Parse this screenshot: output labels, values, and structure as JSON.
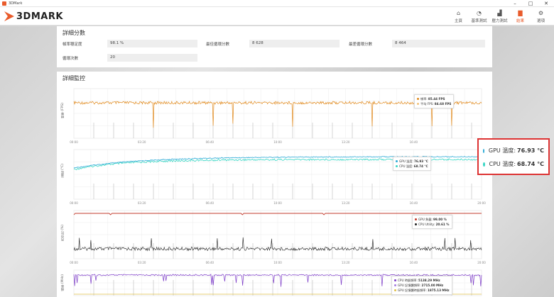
{
  "window": {
    "title": "3DMark",
    "controls": [
      "–",
      "□",
      "✕"
    ]
  },
  "app": {
    "logo_text": "3DMARK"
  },
  "nav": [
    {
      "icon": "home-icon",
      "glyph": "⌂",
      "label": "主頁",
      "active": false
    },
    {
      "icon": "benchmark-icon",
      "glyph": "◔",
      "label": "基準測試",
      "active": false
    },
    {
      "icon": "stress-test-icon",
      "glyph": "▟",
      "label": "壓力測試",
      "active": false
    },
    {
      "icon": "results-icon",
      "glyph": "▇",
      "label": "結果",
      "active": true
    },
    {
      "icon": "options-icon",
      "glyph": "⚙",
      "label": "選項",
      "active": false
    }
  ],
  "details": {
    "title": "詳細分數",
    "frame_stability_label": "幀率穩定度",
    "frame_stability_value": "98.1 %",
    "best_loop_label": "最佳循環分數",
    "best_loop_value": "8 628",
    "worst_loop_label": "最差循環分數",
    "worst_loop_value": "8 464",
    "loops_label": "循環次數",
    "loops_value": "20"
  },
  "monitoring": {
    "title": "詳細監控",
    "fps_axis": "幀率 (FPS)",
    "temp_axis": "溫度 (°C)",
    "util_axis": "百分比 (%)",
    "freq_axis": "頻率 (MHz)",
    "fps_tip": {
      "fps_label": "幀率",
      "fps_value": "85.44 FPS",
      "avg_label": "平均 FPS",
      "avg_value": "84.68 FPS"
    },
    "temp_tip": {
      "gpu_label": "GPU 溫度",
      "gpu_value": "76.93 °C",
      "cpu_label": "CPU 溫度",
      "cpu_value": "68.74 °C"
    },
    "util_tip": {
      "gpu_label": "GPU 負載",
      "gpu_value": "99.00 %",
      "cpu_label": "CPU Utility",
      "cpu_value": "20.61 %"
    },
    "freq_tip": {
      "a_label": "CPU 時脈頻率",
      "a_value": "5138.29 MHz",
      "b_label": "GPU 記憶體頻率",
      "b_value": "2715.00 MHz",
      "c_label": "GPU 記憶體時脈頻率",
      "c_value": "1875.13 MHz"
    },
    "time_ticks": [
      "00:00",
      "03:20",
      "06:40",
      "10:00",
      "13:20",
      "16:40",
      "20:00"
    ]
  },
  "callout": {
    "gpu_label": "GPU 溫度:",
    "gpu_value": "76.93 °C",
    "cpu_label": "CPU 溫度:",
    "cpu_value": "68.74 °C"
  },
  "colors": {
    "accent": "#e95b2b",
    "fps": "#e08a1e",
    "gpu_temp": "#2aa9d6",
    "cpu_temp": "#38d6c4",
    "gpu_load": "#c0392b",
    "cpu_util": "#222222",
    "freq": "#7d3cc8"
  }
}
